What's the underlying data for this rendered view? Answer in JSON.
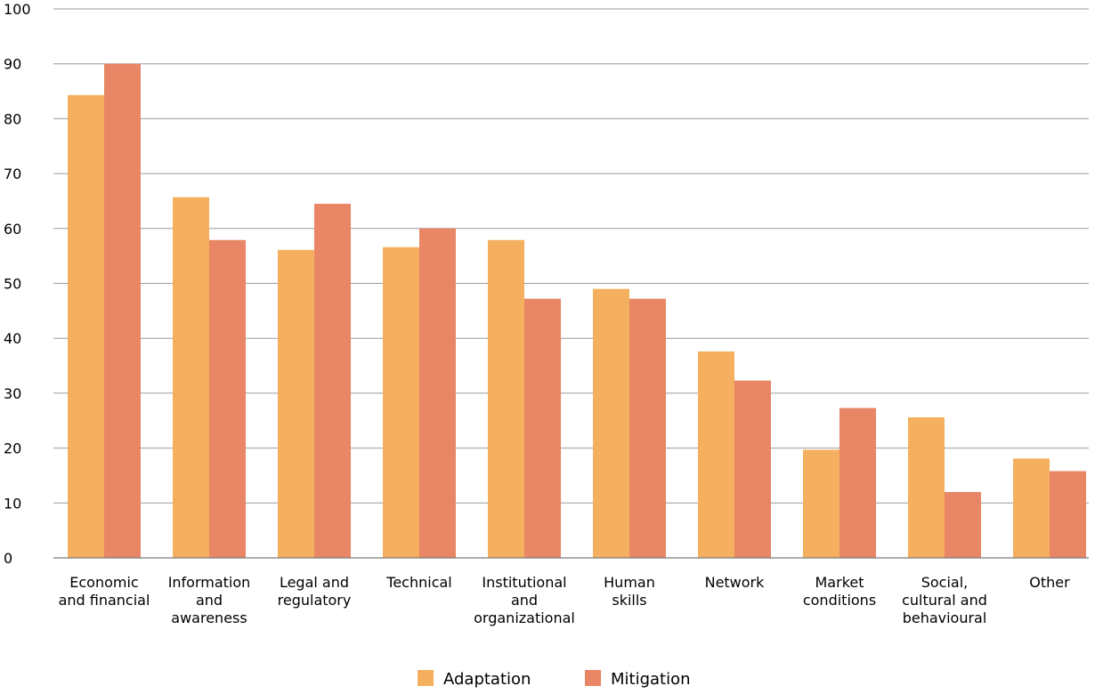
{
  "chart_data": {
    "type": "bar",
    "title": "",
    "xlabel": "",
    "ylabel": "",
    "ylim": [
      0,
      100
    ],
    "yticks": [
      0,
      10,
      20,
      30,
      40,
      50,
      60,
      70,
      80,
      90,
      100
    ],
    "grid": true,
    "legend_position": "bottom-center",
    "categories": [
      [
        "Economic",
        "and financial"
      ],
      [
        "Information",
        "and",
        "awareness"
      ],
      [
        "Legal and",
        "regulatory"
      ],
      [
        "Technical"
      ],
      [
        "Institutional",
        "and",
        "organizational"
      ],
      [
        "Human",
        "skills"
      ],
      [
        "Network"
      ],
      [
        "Market",
        "conditions"
      ],
      [
        "Social,",
        "cultural and",
        "behavioural"
      ],
      [
        "Other"
      ]
    ],
    "series": [
      {
        "name": "Adaptation",
        "color": "#F4B05E",
        "values": [
          84.3,
          65.7,
          56.1,
          56.6,
          57.9,
          49.0,
          37.6,
          19.7,
          25.6,
          18.1
        ]
      },
      {
        "name": "Mitigation",
        "color": "#E98665",
        "values": [
          90.0,
          57.9,
          64.5,
          60.0,
          47.2,
          47.2,
          32.3,
          27.3,
          12.0,
          15.8
        ]
      }
    ]
  }
}
